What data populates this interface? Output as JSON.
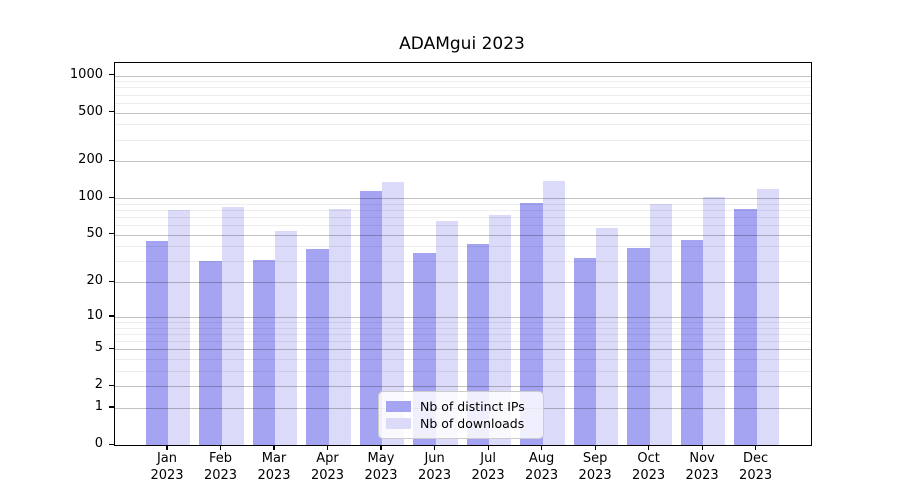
{
  "title": "ADAMgui 2023",
  "legend": {
    "position": "lower center",
    "items": [
      {
        "label": "Nb of distinct IPs",
        "color": "#a4a4f2"
      },
      {
        "label": "Nb of downloads",
        "color": "#dbdbf9"
      }
    ]
  },
  "chart_data": {
    "type": "bar",
    "title": "ADAMgui 2023",
    "xlabel": "",
    "ylabel": "",
    "yscale": "log1p",
    "grid": true,
    "legend_position": "lower center",
    "months": [
      "Jan",
      "Feb",
      "Mar",
      "Apr",
      "May",
      "Jun",
      "Jul",
      "Aug",
      "Sep",
      "Oct",
      "Nov",
      "Dec"
    ],
    "year": "2023",
    "categories": [
      "Jan 2023",
      "Feb 2023",
      "Mar 2023",
      "Apr 2023",
      "May 2023",
      "Jun 2023",
      "Jul 2023",
      "Aug 2023",
      "Sep 2023",
      "Oct 2023",
      "Nov 2023",
      "Dec 2023"
    ],
    "series": [
      {
        "name": "Nb of distinct IPs",
        "color": "#a4a4f2",
        "values": [
          44,
          30,
          31,
          38,
          115,
          35,
          42,
          92,
          32,
          39,
          45,
          81
        ]
      },
      {
        "name": "Nb of downloads",
        "color": "#dbdbf9",
        "values": [
          80,
          84,
          54,
          82,
          135,
          65,
          73,
          139,
          57,
          89,
          102,
          118
        ]
      }
    ],
    "yticks": [
      0,
      1,
      2,
      5,
      10,
      20,
      50,
      100,
      200,
      500,
      1000
    ],
    "yticks_minor": [
      3,
      4,
      6,
      7,
      8,
      9,
      30,
      40,
      60,
      70,
      80,
      90,
      300,
      400,
      600,
      700,
      800,
      900
    ],
    "ylim": [
      0,
      1255
    ]
  }
}
